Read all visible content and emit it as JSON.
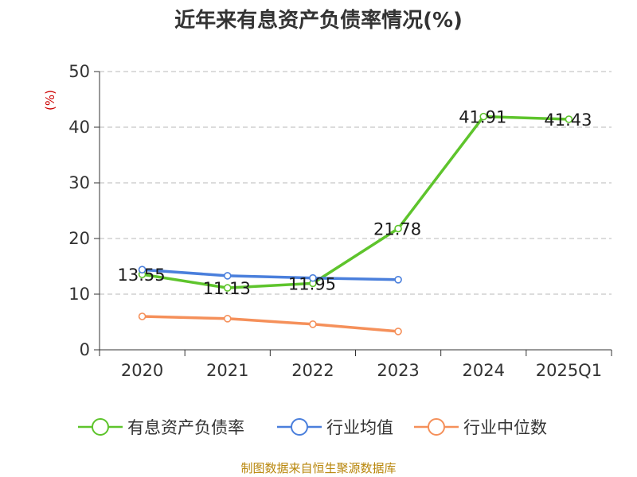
{
  "chart_data": {
    "type": "line",
    "title": "近年来有息资产负债率情况(%)",
    "ylabel": "(%)",
    "xlabel": "",
    "categories": [
      "2020",
      "2021",
      "2022",
      "2023",
      "2024",
      "2025Q1"
    ],
    "ylim": [
      0,
      50
    ],
    "yticks": [
      0,
      10,
      20,
      30,
      40,
      50
    ],
    "grid": true,
    "legend_position": "bottom",
    "series": [
      {
        "name": "有息资产负债率",
        "color": "#5ec42c",
        "values": [
          13.55,
          11.13,
          11.95,
          21.78,
          41.91,
          41.43
        ],
        "data_labels": [
          "13.55",
          "11.13",
          "11.95",
          "21.78",
          "41.91",
          "41.43"
        ]
      },
      {
        "name": "行业均值",
        "color": "#4a7fdc",
        "values": [
          14.4,
          13.3,
          12.9,
          12.6,
          null,
          null
        ]
      },
      {
        "name": "行业中位数",
        "color": "#f5905a",
        "values": [
          6.0,
          5.6,
          4.6,
          3.3,
          null,
          null
        ]
      }
    ],
    "source": "制图数据来自恒生聚源数据库"
  }
}
